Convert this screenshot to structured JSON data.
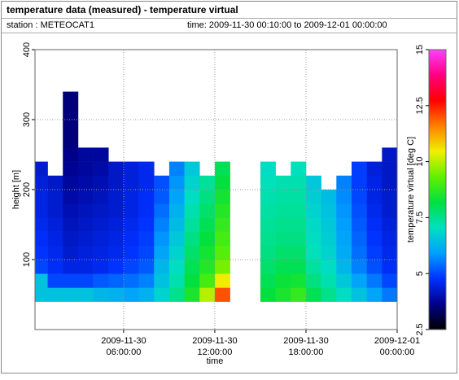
{
  "chart_data": {
    "type": "heatmap",
    "title": "temperature data (measured) - temperature virtual",
    "subtitles": [
      "station : METEOCAT1",
      "time: 2009-11-30 00:10:00 to 2009-12-01 00:00:00"
    ],
    "x_label": "time",
    "y_label": "height [m]",
    "colorbar_label": "temperature virtual [deg C]",
    "x": [
      "2009-11-30 00:10:00",
      "2009-11-30 01:00:00",
      "2009-11-30 02:00:00",
      "2009-11-30 03:00:00",
      "2009-11-30 04:00:00",
      "2009-11-30 05:00:00",
      "2009-11-30 06:00:00",
      "2009-11-30 07:00:00",
      "2009-11-30 08:00:00",
      "2009-11-30 09:00:00",
      "2009-11-30 10:00:00",
      "2009-11-30 11:00:00",
      "2009-11-30 12:00:00",
      "2009-11-30 13:00:00",
      "2009-11-30 14:00:00",
      "2009-11-30 15:00:00",
      "2009-11-30 16:00:00",
      "2009-11-30 17:00:00",
      "2009-11-30 18:00:00",
      "2009-11-30 19:00:00",
      "2009-11-30 20:00:00",
      "2009-11-30 21:00:00",
      "2009-11-30 22:00:00",
      "2009-11-30 23:00:00",
      "2009-12-01 00:00:00"
    ],
    "y": [
      40,
      60,
      80,
      100,
      120,
      140,
      160,
      180,
      200,
      220,
      240,
      260,
      280,
      300,
      320,
      340
    ],
    "values": [
      [
        6.5,
        6.5,
        5,
        4.8,
        4.7,
        4.6,
        4.5,
        4.5,
        4.4,
        4.3,
        null,
        null,
        null,
        null,
        null
      ],
      [
        6.5,
        5,
        4.7,
        4.6,
        4.5,
        4.4,
        4.3,
        4.3,
        4.2,
        null,
        null,
        null,
        null,
        null,
        null
      ],
      [
        6.5,
        5,
        4.5,
        4.3,
        4.2,
        4.1,
        4,
        3.9,
        3.8,
        3.7,
        3.6,
        3.5,
        3.5,
        3.5,
        3.5
      ],
      [
        6.5,
        5,
        4.5,
        4.4,
        4.3,
        4.2,
        4.1,
        4,
        3.9,
        3.8,
        3.8,
        null,
        null,
        null,
        null
      ],
      [
        6.3,
        5.2,
        4.6,
        4.5,
        4.4,
        4.3,
        4.2,
        4.1,
        4,
        3.9,
        3.8,
        null,
        null,
        null,
        null
      ],
      [
        6.2,
        5.3,
        4.8,
        4.6,
        4.5,
        4.4,
        4.3,
        4.3,
        4.2,
        4.2,
        null,
        null,
        null,
        null,
        null
      ],
      [
        6,
        5.4,
        5,
        4.8,
        4.7,
        4.6,
        4.5,
        4.5,
        4.4,
        4.4,
        null,
        null,
        null,
        null,
        null
      ],
      [
        6.2,
        5.6,
        5.2,
        5,
        4.9,
        4.8,
        4.7,
        4.7,
        4.6,
        4.6,
        null,
        null,
        null,
        null,
        null
      ],
      [
        6.8,
        6.5,
        6.3,
        6,
        5.8,
        5.6,
        5.4,
        5.2,
        5.1,
        null,
        null,
        null,
        null,
        null,
        null
      ],
      [
        7.5,
        7.2,
        7,
        6.8,
        6.6,
        6.4,
        6.2,
        6,
        5.8,
        5.6,
        null,
        null,
        null,
        null,
        null
      ],
      [
        8.5,
        8.2,
        8,
        7.8,
        7.6,
        7.4,
        7.2,
        7,
        6.8,
        6.6,
        null,
        null,
        null,
        null,
        null
      ],
      [
        10,
        9,
        8.6,
        8.4,
        8.2,
        8,
        7.8,
        7.6,
        7.4,
        null,
        null,
        null,
        null,
        null,
        null
      ],
      [
        12,
        10.5,
        9.5,
        9.2,
        9,
        8.8,
        8.6,
        8.4,
        8.2,
        8,
        null,
        null,
        null,
        null,
        null
      ],
      [
        null,
        null,
        null,
        null,
        null,
        null,
        null,
        null,
        null,
        null,
        null,
        null,
        null,
        null,
        null
      ],
      [
        null,
        null,
        null,
        null,
        null,
        null,
        null,
        null,
        null,
        null,
        null,
        null,
        null,
        null,
        null
      ],
      [
        8.2,
        8,
        7.8,
        7.6,
        7.5,
        7.4,
        7.3,
        7.2,
        7.1,
        7,
        null,
        null,
        null,
        null,
        null
      ],
      [
        8.5,
        8.3,
        8,
        7.8,
        7.6,
        7.5,
        7.4,
        7.3,
        7.2,
        null,
        null,
        null,
        null,
        null,
        null
      ],
      [
        8.8,
        8.4,
        8,
        7.8,
        7.6,
        7.5,
        7.4,
        7.3,
        7.2,
        7.1,
        null,
        null,
        null,
        null,
        null
      ],
      [
        8,
        7.6,
        7.3,
        7.1,
        7,
        6.9,
        6.8,
        6.7,
        6.6,
        null,
        null,
        null,
        null,
        null,
        null
      ],
      [
        7.5,
        7.2,
        7,
        6.8,
        6.7,
        6.6,
        6.5,
        6.4,
        null,
        null,
        null,
        null,
        null,
        null,
        null
      ],
      [
        7,
        6.6,
        6.3,
        6.1,
        6,
        5.9,
        5.8,
        5.7,
        5.6,
        null,
        null,
        null,
        null,
        null,
        null
      ],
      [
        6.5,
        6,
        5.6,
        5.4,
        5.3,
        5.2,
        5.1,
        5,
        4.9,
        4.9,
        null,
        null,
        null,
        null,
        null
      ],
      [
        6,
        5.5,
        5.1,
        4.9,
        4.8,
        4.7,
        4.6,
        4.5,
        4.5,
        4.4,
        null,
        null,
        null,
        null,
        null
      ],
      [
        5.5,
        5,
        4.7,
        4.6,
        4.5,
        4.4,
        4.3,
        4.3,
        4.2,
        4.2,
        4.2,
        null,
        null,
        null,
        null
      ]
    ],
    "xlim": [
      "2009-11-30 00:10:00",
      "2009-12-01 00:00:00"
    ],
    "xticks": [
      {
        "value": "2009-11-30 06:00:00",
        "label": [
          "2009-11-30",
          "06:00:00"
        ]
      },
      {
        "value": "2009-11-30 12:00:00",
        "label": [
          "2009-11-30",
          "12:00:00"
        ]
      },
      {
        "value": "2009-11-30 18:00:00",
        "label": [
          "2009-11-30",
          "18:00:00"
        ]
      },
      {
        "value": "2009-12-01 00:00:00",
        "label": [
          "2009-12-01",
          "00:00:00"
        ]
      }
    ],
    "ylim": [
      0,
      400
    ],
    "yticks": [
      100,
      200,
      300,
      400
    ],
    "zlim": [
      2.5,
      15
    ],
    "zticks": [
      2.5,
      5,
      7.5,
      10,
      12.5,
      15
    ],
    "colorscale": [
      "#000000",
      "#00008c",
      "#0030ff",
      "#00a0ff",
      "#00e0c0",
      "#00e040",
      "#60f000",
      "#f0f000",
      "#ff8000",
      "#ff0000",
      "#ff0080",
      "#ff40ff"
    ],
    "grid": true
  }
}
